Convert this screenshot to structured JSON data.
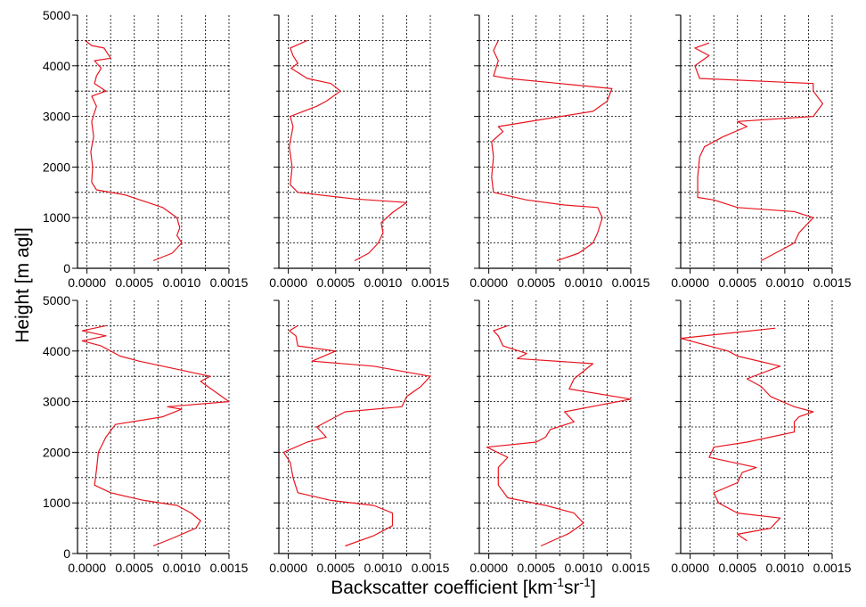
{
  "figure": {
    "ylabel": "Height [m agl]",
    "xlabel": {
      "base": "Backscatter coefficient [km",
      "sup1": "-1",
      "mid": "sr",
      "sup2": "-1",
      "end": "]"
    }
  },
  "chart_data": [
    {
      "type": "line",
      "panel": "row1-col1",
      "xlim": [
        -0.0001,
        0.0015
      ],
      "ylim": [
        0,
        5000
      ],
      "x_ticks": [
        "0.0000",
        "0.0005",
        "0.0010",
        "0.0015"
      ],
      "y_ticks": [
        "0",
        "1000",
        "2000",
        "3000",
        "4000",
        "5000"
      ],
      "grid": true,
      "series": [
        {
          "color": "#e8141e",
          "points": [
            [
              0.0007,
              150
            ],
            [
              0.0009,
              300
            ],
            [
              0.001,
              500
            ],
            [
              0.00095,
              650
            ],
            [
              0.00098,
              800
            ],
            [
              0.00095,
              1000
            ],
            [
              0.0008,
              1200
            ],
            [
              0.0004,
              1450
            ],
            [
              0.0001,
              1550
            ],
            [
              5e-05,
              1700
            ],
            [
              6e-05,
              2000
            ],
            [
              4e-05,
              2300
            ],
            [
              7e-05,
              2600
            ],
            [
              5e-05,
              2900
            ],
            [
              0.0001,
              3200
            ],
            [
              5e-05,
              3400
            ],
            [
              0.0002,
              3500
            ],
            [
              8e-05,
              3650
            ],
            [
              0.0001,
              3800
            ],
            [
              0.00015,
              3950
            ],
            [
              8e-05,
              4100
            ],
            [
              0.00025,
              4150
            ],
            [
              0.00018,
              4350
            ],
            [
              5e-05,
              4400
            ],
            [
              -2e-05,
              4500
            ]
          ]
        }
      ]
    },
    {
      "type": "line",
      "panel": "row1-col2",
      "xlim": [
        -0.0001,
        0.0015
      ],
      "ylim": [
        0,
        5000
      ],
      "x_ticks": [
        "0.0000",
        "0.0005",
        "0.0010",
        "0.0015"
      ],
      "y_ticks": [],
      "grid": true,
      "series": [
        {
          "color": "#e8141e",
          "points": [
            [
              0.0007,
              150
            ],
            [
              0.00085,
              300
            ],
            [
              0.00095,
              500
            ],
            [
              0.001,
              700
            ],
            [
              0.00098,
              900
            ],
            [
              0.0011,
              1100
            ],
            [
              0.00125,
              1300
            ],
            [
              0.0007,
              1370
            ],
            [
              0.0001,
              1500
            ],
            [
              2e-05,
              1650
            ],
            [
              4e-05,
              2000
            ],
            [
              1e-05,
              2400
            ],
            [
              5e-05,
              2800
            ],
            [
              2e-05,
              3000
            ],
            [
              0.0003,
              3200
            ],
            [
              0.0004,
              3300
            ],
            [
              0.00055,
              3500
            ],
            [
              0.00045,
              3650
            ],
            [
              0.0002,
              3750
            ],
            [
              3e-05,
              3950
            ],
            [
              0.0001,
              4050
            ],
            [
              5e-05,
              4200
            ],
            [
              2e-05,
              4350
            ],
            [
              0.0002,
              4500
            ]
          ]
        }
      ]
    },
    {
      "type": "line",
      "panel": "row1-col3",
      "xlim": [
        -0.0001,
        0.0015
      ],
      "ylim": [
        0,
        5000
      ],
      "x_ticks": [
        "0.0000",
        "0.0005",
        "0.0010",
        "0.0015"
      ],
      "y_ticks": [],
      "grid": true,
      "series": [
        {
          "color": "#e8141e",
          "points": [
            [
              0.00072,
              150
            ],
            [
              0.00095,
              300
            ],
            [
              0.0011,
              500
            ],
            [
              0.00115,
              700
            ],
            [
              0.0012,
              1000
            ],
            [
              0.00115,
              1200
            ],
            [
              0.0008,
              1250
            ],
            [
              0.0004,
              1350
            ],
            [
              5e-05,
              1500
            ],
            [
              3e-05,
              1800
            ],
            [
              5e-05,
              2200
            ],
            [
              3e-05,
              2500
            ],
            [
              0.00015,
              2700
            ],
            [
              0.0001,
              2800
            ],
            [
              0.0006,
              2950
            ],
            [
              0.0011,
              3100
            ],
            [
              0.00125,
              3300
            ],
            [
              0.0013,
              3550
            ],
            [
              0.0002,
              3750
            ],
            [
              5e-05,
              3800
            ],
            [
              0.0001,
              4100
            ],
            [
              5e-05,
              4300
            ],
            [
              0.0001,
              4500
            ]
          ]
        }
      ]
    },
    {
      "type": "line",
      "panel": "row1-col4",
      "xlim": [
        -0.0001,
        0.0015
      ],
      "ylim": [
        0,
        5000
      ],
      "x_ticks": [
        "0.0000",
        "0.0005",
        "0.0010",
        "0.0015"
      ],
      "y_ticks": [],
      "grid": true,
      "series": [
        {
          "color": "#e8141e",
          "points": [
            [
              0.00075,
              150
            ],
            [
              0.00095,
              350
            ],
            [
              0.0011,
              500
            ],
            [
              0.00115,
              700
            ],
            [
              0.0013,
              1000
            ],
            [
              0.0011,
              1120
            ],
            [
              0.0005,
              1200
            ],
            [
              0.00025,
              1350
            ],
            [
              8e-05,
              1400
            ],
            [
              8e-05,
              1800
            ],
            [
              0.0001,
              2200
            ],
            [
              0.00015,
              2400
            ],
            [
              0.00035,
              2600
            ],
            [
              0.0006,
              2800
            ],
            [
              0.0005,
              2900
            ],
            [
              0.0013,
              3000
            ],
            [
              0.0014,
              3250
            ],
            [
              0.0013,
              3500
            ],
            [
              0.0013,
              3650
            ],
            [
              0.0001,
              3750
            ],
            [
              5e-05,
              4000
            ],
            [
              0.0002,
              4200
            ],
            [
              5e-05,
              4350
            ],
            [
              0.0002,
              4450
            ]
          ]
        }
      ]
    },
    {
      "type": "line",
      "panel": "row2-col1",
      "xlim": [
        -0.0001,
        0.0015
      ],
      "ylim": [
        0,
        5000
      ],
      "x_ticks": [
        "0.0000",
        "0.0005",
        "0.0010",
        "0.0015"
      ],
      "y_ticks": [
        "0",
        "1000",
        "2000",
        "3000",
        "4000",
        "5000"
      ],
      "grid": true,
      "series": [
        {
          "color": "#e8141e",
          "points": [
            [
              0.0007,
              150
            ],
            [
              0.0009,
              300
            ],
            [
              0.00115,
              500
            ],
            [
              0.0012,
              650
            ],
            [
              0.0011,
              800
            ],
            [
              0.00095,
              950
            ],
            [
              0.0006,
              1050
            ],
            [
              0.00025,
              1200
            ],
            [
              8e-05,
              1350
            ],
            [
              0.0001,
              1650
            ],
            [
              0.00012,
              2000
            ],
            [
              0.0002,
              2300
            ],
            [
              0.0003,
              2550
            ],
            [
              0.0008,
              2700
            ],
            [
              0.001,
              2850
            ],
            [
              0.00085,
              2900
            ],
            [
              0.0015,
              3000
            ],
            [
              0.00135,
              3200
            ],
            [
              0.0012,
              3400
            ],
            [
              0.0013,
              3500
            ],
            [
              0.0008,
              3700
            ],
            [
              0.00055,
              3800
            ],
            [
              0.00035,
              3900
            ],
            [
              0.00015,
              4100
            ],
            [
              -5e-05,
              4200
            ],
            [
              0.0002,
              4300
            ],
            [
              -5e-05,
              4400
            ],
            [
              0.0002,
              4500
            ]
          ]
        }
      ]
    },
    {
      "type": "line",
      "panel": "row2-col2",
      "xlim": [
        -0.0001,
        0.0015
      ],
      "ylim": [
        0,
        5000
      ],
      "x_ticks": [
        "0.0000",
        "0.0005",
        "0.0010",
        "0.0015"
      ],
      "y_ticks": [],
      "grid": true,
      "series": [
        {
          "color": "#e8141e",
          "points": [
            [
              0.0006,
              150
            ],
            [
              0.0009,
              350
            ],
            [
              0.0011,
              550
            ],
            [
              0.0011,
              800
            ],
            [
              0.0009,
              950
            ],
            [
              0.00045,
              1050
            ],
            [
              0.0001,
              1200
            ],
            [
              5e-05,
              1500
            ],
            [
              2e-05,
              1800
            ],
            [
              -5e-05,
              2000
            ],
            [
              0.0002,
              2200
            ],
            [
              0.0004,
              2300
            ],
            [
              0.0003,
              2500
            ],
            [
              0.0006,
              2800
            ],
            [
              0.0012,
              2900
            ],
            [
              0.00125,
              3100
            ],
            [
              0.0014,
              3300
            ],
            [
              0.0015,
              3500
            ],
            [
              0.0009,
              3700
            ],
            [
              0.00025,
              3800
            ],
            [
              0.0005,
              4000
            ],
            [
              0.0001,
              4100
            ],
            [
              8e-05,
              4300
            ],
            [
              1e-05,
              4400
            ],
            [
              0.0001,
              4500
            ]
          ]
        }
      ]
    },
    {
      "type": "line",
      "panel": "row2-col3",
      "xlim": [
        -0.0001,
        0.0015
      ],
      "ylim": [
        0,
        5000
      ],
      "x_ticks": [
        "0.0000",
        "0.0005",
        "0.0010",
        "0.0015"
      ],
      "y_ticks": [],
      "grid": true,
      "series": [
        {
          "color": "#e8141e",
          "points": [
            [
              0.00055,
              150
            ],
            [
              0.00085,
              400
            ],
            [
              0.001,
              600
            ],
            [
              0.0009,
              800
            ],
            [
              0.0006,
              950
            ],
            [
              0.0002,
              1100
            ],
            [
              0.0001,
              1350
            ],
            [
              0.0001,
              1700
            ],
            [
              0.0002,
              1900
            ],
            [
              -2e-05,
              2100
            ],
            [
              0.0005,
              2200
            ],
            [
              0.0006,
              2300
            ],
            [
              0.00065,
              2450
            ],
            [
              0.0009,
              2600
            ],
            [
              0.0008,
              2800
            ],
            [
              0.0015,
              3050
            ],
            [
              0.00085,
              3250
            ],
            [
              0.0009,
              3450
            ],
            [
              0.001,
              3600
            ],
            [
              0.0011,
              3750
            ],
            [
              0.0003,
              3850
            ],
            [
              0.0004,
              3950
            ],
            [
              0.00015,
              4100
            ],
            [
              0.0001,
              4300
            ],
            [
              5e-05,
              4400
            ],
            [
              0.0002,
              4500
            ]
          ]
        }
      ]
    },
    {
      "type": "line",
      "panel": "row2-col4",
      "xlim": [
        -0.0001,
        0.0015
      ],
      "ylim": [
        0,
        5000
      ],
      "x_ticks": [
        "0.0000",
        "0.0005",
        "0.0010",
        "0.0015"
      ],
      "y_ticks": [],
      "grid": true,
      "series": [
        {
          "color": "#e8141e",
          "points": [
            [
              0.0006,
              250
            ],
            [
              0.0005,
              380
            ],
            [
              0.00085,
              500
            ],
            [
              0.00095,
              700
            ],
            [
              0.0005,
              800
            ],
            [
              0.0003,
              1000
            ],
            [
              0.00025,
              1200
            ],
            [
              0.0005,
              1400
            ],
            [
              0.00055,
              1600
            ],
            [
              0.0007,
              1700
            ],
            [
              0.0002,
              1900
            ],
            [
              0.00025,
              2100
            ],
            [
              0.0006,
              2200
            ],
            [
              0.0011,
              2400
            ],
            [
              0.0011,
              2600
            ],
            [
              0.00115,
              2700
            ],
            [
              0.0013,
              2800
            ],
            [
              0.0011,
              2900
            ],
            [
              0.00085,
              3100
            ],
            [
              0.00075,
              3300
            ],
            [
              0.0006,
              3450
            ],
            [
              0.00095,
              3700
            ],
            [
              0.0005,
              3900
            ],
            [
              0.0004,
              4000
            ],
            [
              -0.0001,
              4250
            ],
            [
              0.0004,
              4350
            ],
            [
              0.0009,
              4450
            ]
          ]
        }
      ]
    }
  ]
}
